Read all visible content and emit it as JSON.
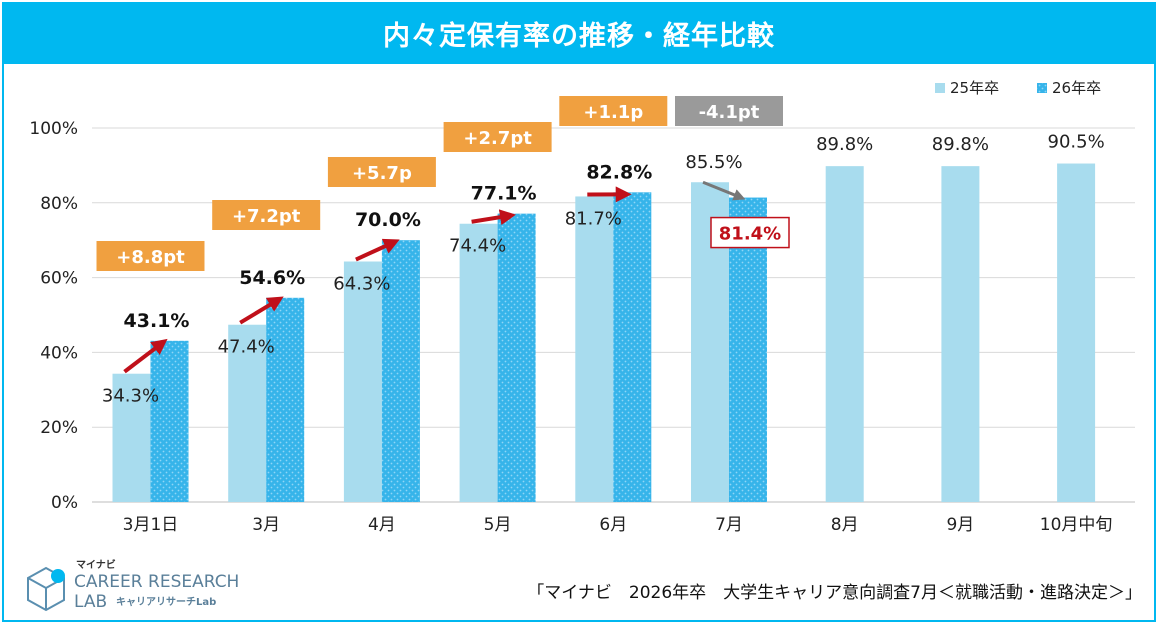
{
  "title": "内々定保有率の推移・経年比較",
  "source_note": "「マイナビ　2026年卒　大学生キャリア意向調査7月＜就職活動・進路決定＞」",
  "logo": {
    "line1": "マイナビ",
    "line2": "CAREER RESEARCH",
    "line3": "LAB",
    "line4": "キャリアリサーチLab"
  },
  "colors": {
    "accent": "#00b8f0",
    "bar25": "#a8dcee",
    "bar26": "#36b4ea",
    "orange": "#f0a040",
    "gray": "#9a9a9a",
    "red": "#c0101a"
  },
  "chart_data": {
    "type": "bar",
    "categories": [
      "3月1日",
      "3月",
      "4月",
      "5月",
      "6月",
      "7月",
      "8月",
      "9月",
      "10月中旬"
    ],
    "series": [
      {
        "name": "25年卒",
        "values": [
          34.3,
          47.4,
          64.3,
          74.4,
          81.7,
          85.5,
          89.8,
          89.8,
          90.5
        ],
        "labels": [
          "34.3%",
          "47.4%",
          "64.3%",
          "74.4%",
          "81.7%",
          "85.5%",
          "89.8%",
          "89.8%",
          "90.5%"
        ]
      },
      {
        "name": "26年卒",
        "values": [
          43.1,
          54.6,
          70.0,
          77.1,
          82.8,
          81.4,
          null,
          null,
          null
        ],
        "labels": [
          "43.1%",
          "54.6%",
          "70.0%",
          "77.1%",
          "82.8%",
          "81.4%",
          "",
          "",
          ""
        ]
      }
    ],
    "diffs": [
      "+8.8pt",
      "+7.2pt",
      "+5.7p",
      "+2.7pt",
      "+1.1p",
      "-4.1pt"
    ],
    "yticks": [
      "0%",
      "20%",
      "40%",
      "60%",
      "80%",
      "100%"
    ],
    "ylim": [
      0,
      100
    ],
    "legend": "top-right",
    "grid": true
  }
}
